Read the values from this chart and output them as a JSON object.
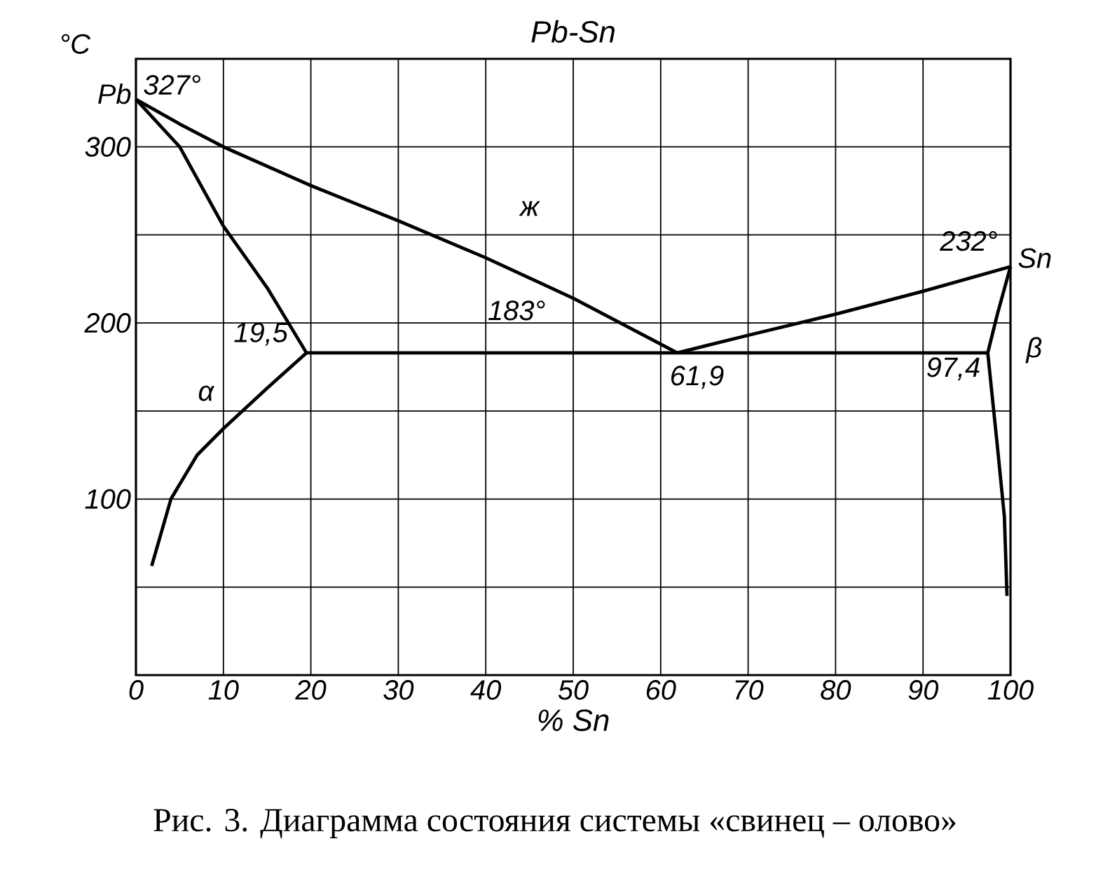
{
  "chart_data": {
    "type": "line",
    "title": "Pb-Sn",
    "xlabel": "% Sn",
    "ylabel": "°C",
    "xlim": [
      0,
      100
    ],
    "ylim": [
      0,
      350
    ],
    "xticks": [
      0,
      10,
      20,
      30,
      40,
      50,
      60,
      70,
      80,
      90,
      100
    ],
    "yticks": [
      {
        "value": 0,
        "label": null
      },
      {
        "value": 50,
        "label": null
      },
      100,
      {
        "value": 150,
        "label": null
      },
      200,
      {
        "value": 250,
        "label": null
      },
      300,
      {
        "value": 350,
        "label": null
      }
    ],
    "grid": true,
    "marker": "none",
    "line_style": "solid",
    "series": [
      {
        "color": "#000000",
        "x": [
          0,
          5,
          10,
          20,
          30,
          40,
          50,
          55,
          61.9
        ],
        "values": [
          327,
          313,
          300,
          278,
          258,
          237,
          214,
          201,
          183
        ]
      },
      {
        "color": "#000000",
        "x": [
          61.9,
          70,
          80,
          90,
          100
        ],
        "values": [
          183,
          193,
          205,
          218,
          232
        ]
      },
      {
        "color": "#000000",
        "x": [
          0,
          5,
          10,
          15,
          19.5
        ],
        "values": [
          327,
          300,
          255,
          220,
          183
        ]
      },
      {
        "color": "#000000",
        "x": [
          19.5,
          97.4
        ],
        "values": [
          183,
          183
        ]
      },
      {
        "color": "#000000",
        "x": [
          1.8,
          4,
          7,
          10,
          15,
          19.5
        ],
        "values": [
          62,
          100,
          125,
          140,
          163,
          183
        ]
      },
      {
        "color": "#000000",
        "x": [
          99.6,
          99.3,
          98.5,
          97.4,
          98.5,
          100
        ],
        "values": [
          45,
          90,
          130,
          183,
          205,
          232
        ]
      }
    ],
    "annotations": [
      {
        "text": "327°",
        "x": 0,
        "y": 327
      },
      {
        "text": "Pb",
        "x": 0,
        "y": 327
      },
      {
        "text": "232°",
        "x": 100,
        "y": 232
      },
      {
        "text": "Sn",
        "x": 100,
        "y": 232
      },
      {
        "text": "183°",
        "x": 40,
        "y": 183
      },
      {
        "text": "19,5",
        "x": 19.5,
        "y": 183
      },
      {
        "text": "61,9",
        "x": 61.9,
        "y": 183
      },
      {
        "text": "97,4",
        "x": 97.4,
        "y": 183
      },
      "ж",
      "α",
      "β",
      "Рис. 3. Диаграмма состояния системы «свинец – олово»"
    ]
  }
}
